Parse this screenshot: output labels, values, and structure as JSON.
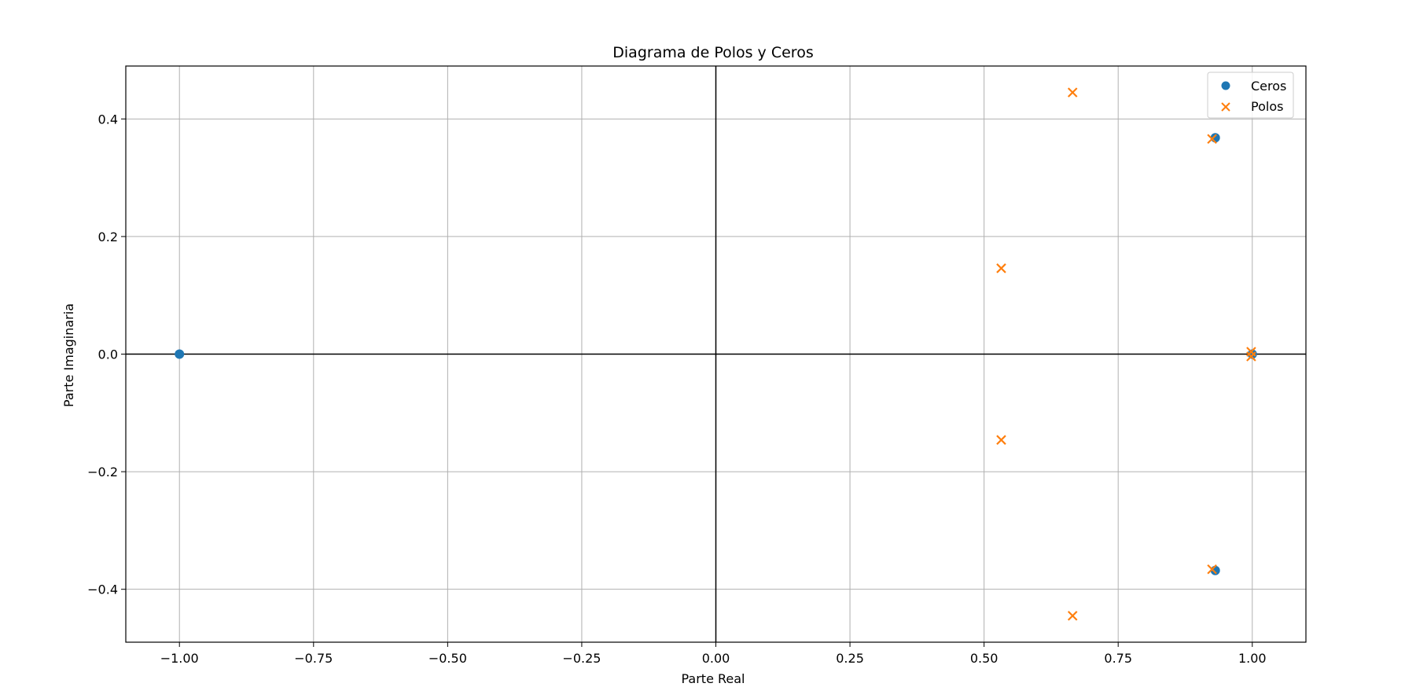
{
  "chart_data": {
    "type": "scatter",
    "title": "Diagrama de Polos y Ceros",
    "xlabel": "Parte Real",
    "ylabel": "Parte Imaginaria",
    "xlim": [
      -1.1,
      1.1
    ],
    "ylim": [
      -0.49,
      0.49
    ],
    "grid": true,
    "legend_position": "top-right",
    "xticks": [
      -1.0,
      -0.75,
      -0.5,
      -0.25,
      0.0,
      0.25,
      0.5,
      0.75,
      1.0
    ],
    "xtick_labels": [
      "−1.00",
      "−0.75",
      "−0.50",
      "−0.25",
      "0.00",
      "0.25",
      "0.50",
      "0.75",
      "1.00"
    ],
    "yticks": [
      -0.4,
      -0.2,
      0.0,
      0.2,
      0.4
    ],
    "ytick_labels": [
      "−0.4",
      "−0.2",
      "0.0",
      "0.2",
      "0.4"
    ],
    "reference_lines": {
      "x": 0.0,
      "y": 0.0,
      "color": "#000000"
    },
    "series": [
      {
        "name": "Ceros",
        "marker": "circle",
        "color": "#1f77b4",
        "points": [
          [
            -1.0,
            0.0
          ],
          [
            0.931,
            0.368
          ],
          [
            0.931,
            -0.368
          ],
          [
            1.0,
            0.0
          ]
        ]
      },
      {
        "name": "Polos",
        "marker": "x",
        "color": "#ff7f0e",
        "points": [
          [
            0.665,
            0.445
          ],
          [
            0.925,
            0.366
          ],
          [
            0.532,
            0.146
          ],
          [
            0.998,
            0.004
          ],
          [
            0.998,
            -0.004
          ],
          [
            0.532,
            -0.146
          ],
          [
            0.925,
            -0.366
          ],
          [
            0.665,
            -0.445
          ]
        ]
      }
    ]
  }
}
